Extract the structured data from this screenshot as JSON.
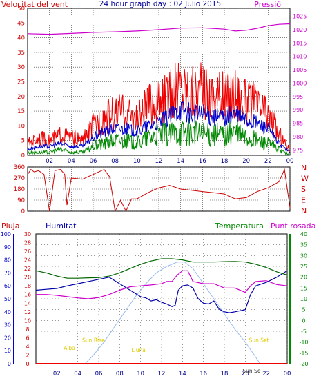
{
  "header": {
    "wind_label": "Velocitat del vent",
    "title": "24 hour graph day : 02 Julio 2015",
    "pressure_label": "Pressió"
  },
  "colors": {
    "wind_gust": "#ee0000",
    "wind_avg": "#0000cc",
    "wind_min": "#008800",
    "pressure": "#cc00cc",
    "direction": "#cc0000",
    "humidity": "#0000aa",
    "temperature": "#006600",
    "dewpoint": "#cc00cc",
    "solar": "#99bbee",
    "rain": "#ee0000",
    "grid": "#333333",
    "sun_labels": "#ddcc00"
  },
  "chart_data": [
    {
      "type": "line",
      "title": "24 hour graph day : 02 Julio 2015",
      "ylabel": "Velocitat del vent",
      "y2label": "Pressió",
      "x_ticks": [
        "02",
        "04",
        "06",
        "08",
        "10",
        "12",
        "14",
        "16",
        "18",
        "20",
        "22",
        "00"
      ],
      "ylim": [
        0,
        50
      ],
      "y_ticks": [
        0,
        5,
        10,
        15,
        20,
        25,
        30,
        35,
        40,
        45,
        50
      ],
      "y2lim": [
        973,
        1028
      ],
      "y2_ticks": [
        975,
        980,
        985,
        990,
        995,
        1000,
        1005,
        1010,
        1015,
        1020,
        1025
      ],
      "grid": true,
      "series": [
        {
          "key": "gust",
          "axis": "left",
          "x": [
            0,
            1,
            2,
            3,
            4,
            5,
            6,
            7,
            8,
            9,
            10,
            11,
            12,
            13,
            14,
            15,
            16,
            17,
            18,
            19,
            20,
            21,
            22,
            23,
            24
          ],
          "values": [
            4,
            6,
            5,
            7,
            6,
            5,
            10,
            13,
            14,
            15,
            12,
            17,
            18,
            20,
            24,
            22,
            22,
            21,
            20,
            22,
            18,
            17,
            14,
            7,
            2
          ]
        },
        {
          "key": "avg",
          "axis": "left",
          "x": [
            0,
            1,
            2,
            3,
            4,
            5,
            6,
            7,
            8,
            9,
            10,
            11,
            12,
            13,
            14,
            15,
            16,
            17,
            18,
            19,
            20,
            21,
            22,
            23,
            24
          ],
          "values": [
            2,
            3,
            3,
            4,
            3,
            3,
            6,
            8,
            9,
            9,
            8,
            10,
            11,
            13,
            16,
            14,
            14,
            13,
            13,
            14,
            12,
            11,
            9,
            4,
            1
          ]
        },
        {
          "key": "min",
          "axis": "left",
          "x": [
            0,
            1,
            2,
            3,
            4,
            5,
            6,
            7,
            8,
            9,
            10,
            11,
            12,
            13,
            14,
            15,
            16,
            17,
            18,
            19,
            20,
            21,
            22,
            23,
            24
          ],
          "values": [
            1,
            1,
            1,
            2,
            1,
            1,
            3,
            4,
            5,
            5,
            4,
            6,
            7,
            7,
            8,
            8,
            7,
            7,
            7,
            8,
            6,
            5,
            4,
            2,
            0
          ]
        },
        {
          "key": "pressure",
          "axis": "right",
          "x": [
            0,
            2,
            4,
            6,
            8,
            10,
            12,
            14,
            16,
            18,
            19,
            20,
            21,
            22,
            23,
            24
          ],
          "values": [
            1018.5,
            1018.3,
            1018.6,
            1019.0,
            1019.2,
            1019.5,
            1020.0,
            1020.6,
            1020.7,
            1020.2,
            1019.5,
            1019.8,
            1020.5,
            1021.5,
            1022.0,
            1022.2
          ]
        }
      ]
    },
    {
      "type": "line",
      "ylim": [
        0,
        360
      ],
      "y_ticks": [
        0,
        90,
        180,
        270,
        360
      ],
      "y2_labels": [
        "N",
        "W",
        "S",
        "E",
        "N"
      ],
      "grid": true,
      "series": [
        {
          "key": "direction",
          "x": [
            0,
            0.3,
            0.6,
            1.0,
            1.5,
            2.0,
            2.5,
            3.0,
            3.4,
            3.6,
            4.0,
            5.0,
            6.0,
            7.0,
            7.5,
            8.0,
            8.5,
            9.0,
            9.5,
            10.0,
            11.0,
            12.0,
            13.0,
            14.0,
            15.0,
            16.0,
            17.0,
            18.0,
            19.0,
            20.0,
            21.0,
            22.0,
            23.0,
            23.5,
            24.0
          ],
          "values": [
            300,
            340,
            320,
            330,
            300,
            0,
            330,
            340,
            300,
            50,
            270,
            260,
            300,
            340,
            280,
            0,
            90,
            0,
            100,
            100,
            150,
            190,
            210,
            180,
            170,
            160,
            150,
            140,
            100,
            110,
            160,
            190,
            240,
            340,
            30
          ]
        }
      ]
    },
    {
      "type": "line",
      "x_ticks": [
        "02",
        "04",
        "06",
        "08",
        "10",
        "12",
        "14",
        "16",
        "18",
        "20",
        "22",
        "00"
      ],
      "rain_axis": {
        "label": "Pluja",
        "ylim": [
          0,
          100
        ],
        "ticks": [
          0,
          10,
          20,
          30,
          40,
          50,
          60,
          70,
          80,
          90,
          100
        ]
      },
      "humidity_axis": {
        "label": "Humitat",
        "ylim": [
          0,
          30
        ],
        "ticks": [
          0,
          2,
          4,
          6,
          8,
          10,
          12,
          14,
          16,
          18,
          20,
          22,
          24,
          26,
          28,
          30
        ]
      },
      "temp_axis": {
        "label": "Temperatura",
        "ylim": [
          -20,
          40
        ],
        "ticks": [
          -20,
          -15,
          -10,
          -5,
          0,
          5,
          10,
          15,
          20,
          25,
          30,
          35,
          40
        ]
      },
      "dewpoint_label": "Punt rosada",
      "grid": true,
      "series": [
        {
          "key": "temperature",
          "x": [
            0,
            1,
            2,
            3,
            4,
            5,
            6,
            7,
            8,
            9,
            10,
            11,
            12,
            13,
            14,
            15,
            16,
            17,
            18,
            19,
            20,
            21,
            22,
            23,
            24
          ],
          "values": [
            23,
            22,
            20.5,
            19.5,
            19.5,
            19.7,
            19.8,
            20.5,
            22,
            24,
            26,
            27.5,
            28.5,
            28.5,
            28,
            27,
            27,
            27,
            27.2,
            27.3,
            27,
            26,
            24.5,
            22.5,
            21
          ]
        },
        {
          "key": "humidity",
          "x": [
            0,
            1,
            2,
            3,
            4,
            5,
            6,
            7,
            8,
            9,
            10,
            10.5,
            11,
            11.5,
            12,
            12.5,
            13,
            13.3,
            13.6,
            14,
            14.5,
            15,
            15.5,
            16,
            16.5,
            17,
            17.5,
            18,
            18.5,
            19,
            20,
            20.5,
            21,
            22,
            23,
            24
          ],
          "values": [
            17,
            17.2,
            17.4,
            18,
            18.5,
            19,
            19.5,
            20,
            18.5,
            17,
            15.5,
            15.2,
            14.5,
            14.8,
            14.2,
            13.8,
            13.2,
            13.5,
            17,
            18,
            18.2,
            17.5,
            15,
            14,
            13.8,
            14.5,
            12.6,
            12,
            11.8,
            12,
            12.5,
            16,
            18,
            18.8,
            20,
            21.5
          ]
        },
        {
          "key": "dewpoint",
          "x": [
            0,
            1,
            2,
            3,
            4,
            5,
            6,
            7,
            8,
            9,
            10,
            11,
            12,
            12.5,
            13,
            13.5,
            14,
            14.5,
            15,
            16,
            17,
            18,
            19,
            20,
            20.5,
            21,
            22,
            23,
            24
          ],
          "values": [
            16,
            16,
            15.8,
            15.5,
            15.2,
            15,
            15.3,
            16,
            17,
            17.8,
            18,
            18.2,
            18.5,
            19,
            19,
            20.5,
            21.5,
            21.5,
            19,
            18.5,
            18.5,
            17.5,
            17.5,
            16.5,
            18,
            19,
            19.2,
            18.3,
            18
          ]
        },
        {
          "key": "solar",
          "x": [
            4.7,
            5.5,
            6.5,
            7.5,
            8.5,
            9.5,
            10.5,
            11.5,
            12.5,
            13.5,
            14.2,
            15,
            16,
            17,
            18,
            19,
            20,
            21,
            21.4
          ],
          "values": [
            0,
            2,
            5,
            8.5,
            12,
            15.5,
            18.5,
            21,
            22.5,
            23.5,
            23.5,
            22,
            18.5,
            15,
            11.5,
            8,
            5,
            1.5,
            0
          ]
        },
        {
          "key": "rain",
          "x": [
            0,
            24
          ],
          "values": [
            0,
            0
          ]
        }
      ],
      "annotations": [
        {
          "label": "Alba",
          "x": 3.2,
          "y": 3.2
        },
        {
          "label": "Sun Rise",
          "x": 5.5,
          "y": 5.0
        },
        {
          "label": "Lluna",
          "x": 9.8,
          "y": 2.7
        },
        {
          "label": "Sun Set",
          "x": 21.3,
          "y": 5.0
        },
        {
          "label": "Sun Se",
          "x": 20.6,
          "y": -2.1
        }
      ]
    }
  ]
}
